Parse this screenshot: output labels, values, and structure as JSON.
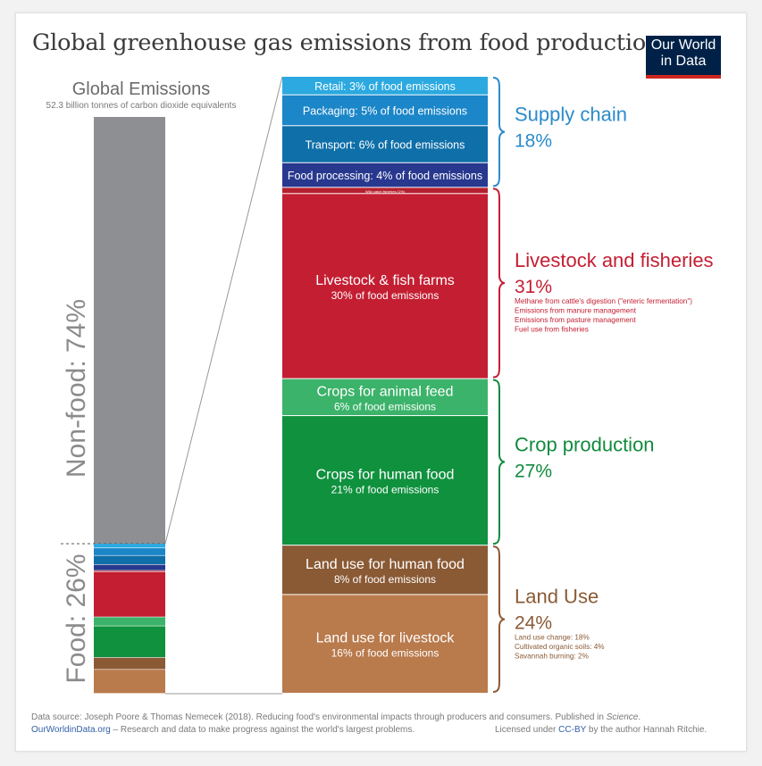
{
  "title": "Global greenhouse gas emissions from food production",
  "logo": {
    "line1": "Our World",
    "line2": "in Data"
  },
  "left_bar": {
    "heading": "Global Emissions",
    "subheading": "52.3 billion tonnes of carbon dioxide equivalents",
    "nonfood_label": "Non-food: 74%",
    "food_label": "Food: 26%"
  },
  "colors": {
    "nonfood": "#8e8f92",
    "retail": "#2ba9e0",
    "packaging": "#1b86c8",
    "transport": "#0f6fa8",
    "processing": "#28388f",
    "wild_fish": "#b5202e",
    "livestock": "#c41e32",
    "animal_feed": "#3cb36a",
    "human_food_crops": "#10913e",
    "land_human": "#8a5a35",
    "land_livestock": "#b97a4c",
    "supply_text": "#2b8bcb",
    "livestock_text": "#c41e32",
    "crop_text": "#128a3e",
    "land_text": "#8a5a35"
  },
  "chart_data": {
    "type": "bar",
    "title": "Global greenhouse gas emissions from food production",
    "total": "52.3 billion tonnes of carbon dioxide equivalents",
    "overall_split": [
      {
        "name": "Non-food",
        "value": 74
      },
      {
        "name": "Food",
        "value": 26
      }
    ],
    "segments": [
      {
        "key": "retail",
        "label": "Retail: 3% of food emissions",
        "value": 3
      },
      {
        "key": "packaging",
        "label": "Packaging: 5% of food emissions",
        "value": 5
      },
      {
        "key": "transport",
        "label": "Transport: 6% of food emissions",
        "value": 6
      },
      {
        "key": "processing",
        "label": "Food processing: 4% of food emissions",
        "value": 4
      },
      {
        "key": "wild_fish",
        "label": "Wild catch fisheries (1%)",
        "value": 1
      },
      {
        "key": "livestock",
        "label": "Livestock & fish farms",
        "sublabel": "30% of food emissions",
        "value": 30
      },
      {
        "key": "animal_feed",
        "label": "Crops for animal feed",
        "sublabel": "6% of food emissions",
        "value": 6
      },
      {
        "key": "human_food_crops",
        "label": "Crops for human food",
        "sublabel": "21% of food emissions",
        "value": 21
      },
      {
        "key": "land_human",
        "label": "Land use for human food",
        "sublabel": "8% of food emissions",
        "value": 8
      },
      {
        "key": "land_livestock",
        "label": "Land use for livestock",
        "sublabel": "16% of food emissions",
        "value": 16
      }
    ],
    "groups": [
      {
        "key": "supply",
        "name": "Supply chain",
        "pct": "18%",
        "notes": []
      },
      {
        "key": "livestock",
        "name": "Livestock and fisheries",
        "pct": "31%",
        "notes": [
          "Methane from cattle's digestion (\"enteric fermentation\")",
          "Emissions from manure management",
          "Emissions from pasture management",
          "Fuel use from fisheries"
        ]
      },
      {
        "key": "crop",
        "name": "Crop production",
        "pct": "27%",
        "notes": []
      },
      {
        "key": "land",
        "name": "Land Use",
        "pct": "24%",
        "notes": [
          "Land use change: 18%",
          "Cultivated organic soils: 4%",
          "Savannah burning: 2%"
        ]
      }
    ]
  },
  "footer": {
    "source_prefix": "Data source: Joseph Poore & Thomas Nemecek (2018). Reducing food's environmental impacts through producers and consumers. Published in ",
    "source_journal": "Science",
    "source_suffix": ".",
    "site": "OurWorldinData.org",
    "tagline": " – Research and data to make progress against the world's largest problems.",
    "license_prefix": "Licensed under ",
    "license": "CC-BY",
    "license_suffix": " by the author Hannah Ritchie."
  }
}
